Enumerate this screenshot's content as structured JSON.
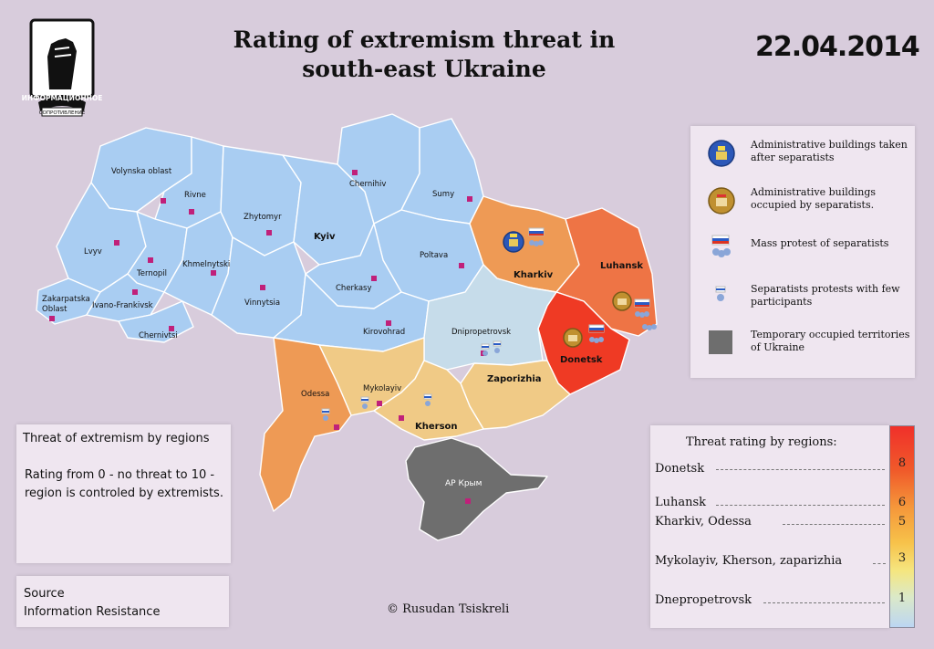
{
  "title": "Rating of extremism threat in south-east Ukraine",
  "date": "22.04.2014",
  "logo": {
    "icon": "raised-fist-emblem",
    "text_top": "ИНФОРМАЦИОННОЕ",
    "text_bottom": "СОПРОТИВЛЕНИЕ"
  },
  "map": {
    "labels": {
      "volynska": "Volynska oblast",
      "rivne": "Rivne",
      "lvyv": "Lvyv",
      "ternopil": "Ternopil",
      "khmelnytski": "Khmelnytski",
      "zakarpatska_1": "Zakarpatska",
      "zakarpatska_2": "Oblast",
      "ivano": "Ivano-Frankivsk",
      "chernivtsi": "Chernivtsi",
      "zhytomyr": "Zhytomyr",
      "vinnytsia": "Vinnytsia",
      "kyiv": "Kyiv",
      "chernihiv": "Chernihiv",
      "sumy": "Sumy",
      "poltava": "Poltava",
      "cherkasy": "Cherkasy",
      "kirovohrad": "Kirovohrad",
      "kharkiv": "Kharkiv",
      "luhansk": "Luhansk",
      "donetsk": "Donetsk",
      "dnipropetrovsk": "Dnipropetrovsk",
      "zaporizhia": "Zaporizhia",
      "mykolayiv": "Mykolayiv",
      "kherson": "Kherson",
      "odessa": "Odessa",
      "crimea": "АР Крым"
    },
    "colors": {
      "no_threat": "#a9cdf2",
      "low": "#c6dcea",
      "medium": "#f0ca86",
      "high": "#ee9a55",
      "luhansk": "#ee7445",
      "donetsk": "#ef3a24",
      "occupied": "#6e6e6e",
      "marker": "#c0207a"
    }
  },
  "legend": {
    "items": [
      {
        "icon": "building-taken-icon",
        "label": "Administrative buildings taken after separatists"
      },
      {
        "icon": "building-occupied-icon",
        "label": "Administrative buildings occupied by separatists."
      },
      {
        "icon": "mass-protest-icon",
        "label": "Mass protest of separatists"
      },
      {
        "icon": "small-protest-icon",
        "label": "Separatists protests with few participants"
      },
      {
        "icon": "occupied-square-icon",
        "label": "Temporary occupied territories of Ukraine"
      }
    ]
  },
  "threat_box": {
    "title": "Threat of extremism by regions",
    "description": "Rating from 0 - no threat to 10 - region is controled by extremists."
  },
  "source": {
    "label": "Source",
    "value": "Information Resistance"
  },
  "credit": "© Rusudan Tsiskreli",
  "rating": {
    "title": "Threat rating by regions:",
    "rows": [
      {
        "regions": "Donetsk",
        "value": "8"
      },
      {
        "regions": "Luhansk",
        "value": "6"
      },
      {
        "regions": "Kharkiv, Odessa",
        "value": "5"
      },
      {
        "regions": "Mykolayiv, Kherson, zaparizhia",
        "value": "3"
      },
      {
        "regions": "Dnepropetrovsk",
        "value": "1"
      }
    ]
  }
}
